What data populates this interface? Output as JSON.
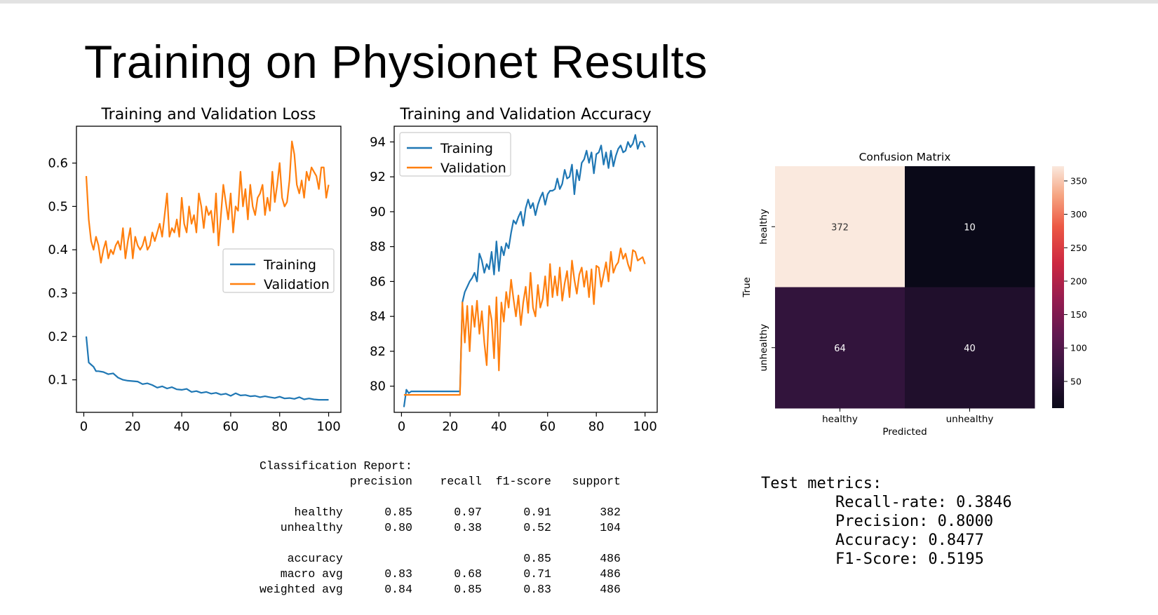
{
  "slide": {
    "title": "Training on Physionet Results"
  },
  "chart_data": [
    {
      "type": "line",
      "title": "Training and Validation Loss",
      "xlabel": "",
      "ylabel": "",
      "xlim": [
        -3,
        105
      ],
      "ylim": [
        0.025,
        0.685
      ],
      "xticks": [
        0,
        20,
        40,
        60,
        80,
        100
      ],
      "yticks": [
        0.1,
        0.2,
        0.3,
        0.4,
        0.5,
        0.6
      ],
      "grid": false,
      "legend": "center-right",
      "series": [
        {
          "name": "Training",
          "color": "#1f77b4",
          "x": [
            1,
            2,
            3,
            4,
            5,
            6,
            8,
            10,
            12,
            14,
            16,
            18,
            20,
            22,
            24,
            26,
            28,
            30,
            32,
            34,
            36,
            38,
            40,
            42,
            44,
            46,
            48,
            50,
            52,
            54,
            56,
            58,
            60,
            62,
            64,
            66,
            68,
            70,
            72,
            74,
            76,
            78,
            80,
            82,
            84,
            86,
            88,
            90,
            92,
            94,
            96,
            98,
            100
          ],
          "y": [
            0.2,
            0.14,
            0.135,
            0.13,
            0.12,
            0.12,
            0.118,
            0.113,
            0.115,
            0.105,
            0.1,
            0.098,
            0.097,
            0.096,
            0.09,
            0.092,
            0.088,
            0.082,
            0.085,
            0.08,
            0.083,
            0.078,
            0.077,
            0.079,
            0.072,
            0.074,
            0.07,
            0.072,
            0.068,
            0.07,
            0.066,
            0.068,
            0.063,
            0.069,
            0.064,
            0.065,
            0.062,
            0.063,
            0.06,
            0.062,
            0.06,
            0.058,
            0.061,
            0.057,
            0.058,
            0.056,
            0.06,
            0.055,
            0.057,
            0.055,
            0.054,
            0.054,
            0.054
          ]
        },
        {
          "name": "Validation",
          "color": "#ff7f0e",
          "x": [
            1,
            2,
            3,
            4,
            5,
            6,
            7,
            8,
            9,
            10,
            11,
            12,
            13,
            14,
            15,
            16,
            17,
            18,
            19,
            20,
            21,
            22,
            23,
            24,
            25,
            26,
            27,
            28,
            29,
            30,
            31,
            32,
            33,
            34,
            35,
            36,
            37,
            38,
            39,
            40,
            41,
            42,
            43,
            44,
            45,
            46,
            47,
            48,
            49,
            50,
            51,
            52,
            53,
            54,
            55,
            56,
            57,
            58,
            59,
            60,
            61,
            62,
            63,
            64,
            65,
            66,
            67,
            68,
            69,
            70,
            71,
            72,
            73,
            74,
            75,
            76,
            77,
            78,
            79,
            80,
            81,
            82,
            83,
            84,
            85,
            86,
            87,
            88,
            89,
            90,
            91,
            92,
            93,
            94,
            95,
            96,
            97,
            98,
            99,
            100
          ],
          "y": [
            0.57,
            0.47,
            0.42,
            0.4,
            0.43,
            0.41,
            0.37,
            0.4,
            0.42,
            0.38,
            0.4,
            0.39,
            0.41,
            0.42,
            0.4,
            0.45,
            0.38,
            0.42,
            0.45,
            0.38,
            0.43,
            0.41,
            0.4,
            0.41,
            0.43,
            0.4,
            0.41,
            0.44,
            0.42,
            0.44,
            0.46,
            0.43,
            0.48,
            0.53,
            0.43,
            0.45,
            0.44,
            0.47,
            0.43,
            0.52,
            0.46,
            0.44,
            0.5,
            0.46,
            0.48,
            0.44,
            0.53,
            0.5,
            0.45,
            0.5,
            0.48,
            0.49,
            0.44,
            0.53,
            0.41,
            0.48,
            0.55,
            0.51,
            0.47,
            0.53,
            0.44,
            0.5,
            0.49,
            0.58,
            0.5,
            0.54,
            0.47,
            0.55,
            0.5,
            0.48,
            0.52,
            0.53,
            0.55,
            0.48,
            0.52,
            0.49,
            0.58,
            0.51,
            0.55,
            0.6,
            0.52,
            0.5,
            0.51,
            0.56,
            0.65,
            0.62,
            0.55,
            0.53,
            0.56,
            0.52,
            0.58,
            0.56,
            0.59,
            0.58,
            0.57,
            0.54,
            0.59,
            0.59,
            0.52,
            0.55
          ]
        }
      ]
    },
    {
      "type": "line",
      "title": "Training and Validation Accuracy",
      "xlabel": "",
      "ylabel": "",
      "xlim": [
        -3,
        105
      ],
      "ylim": [
        78.5,
        94.9
      ],
      "xticks": [
        0,
        20,
        40,
        60,
        80,
        100
      ],
      "yticks": [
        80,
        82,
        84,
        86,
        88,
        90,
        92,
        94
      ],
      "grid": false,
      "legend": "top-left",
      "series": [
        {
          "name": "Training",
          "color": "#1f77b4",
          "x": [
            1,
            2,
            3,
            4,
            5,
            6,
            8,
            10,
            12,
            14,
            16,
            18,
            20,
            22,
            24,
            25,
            26,
            27,
            28,
            29,
            30,
            31,
            32,
            33,
            34,
            35,
            36,
            37,
            38,
            39,
            40,
            41,
            42,
            43,
            44,
            45,
            46,
            47,
            48,
            49,
            50,
            51,
            52,
            53,
            54,
            55,
            56,
            57,
            58,
            59,
            60,
            61,
            62,
            63,
            64,
            65,
            66,
            67,
            68,
            69,
            70,
            71,
            72,
            73,
            74,
            75,
            76,
            77,
            78,
            79,
            80,
            81,
            82,
            83,
            84,
            85,
            86,
            87,
            88,
            89,
            90,
            91,
            92,
            93,
            94,
            95,
            96,
            97,
            98,
            99,
            100
          ],
          "y": [
            78.8,
            79.8,
            79.6,
            79.7,
            79.7,
            79.7,
            79.7,
            79.7,
            79.7,
            79.7,
            79.7,
            79.7,
            79.7,
            79.7,
            79.7,
            84.8,
            85.4,
            85.7,
            86.0,
            86.2,
            86.5,
            86.0,
            87.6,
            87.2,
            86.5,
            87.0,
            86.7,
            87.7,
            86.4,
            88.3,
            86.6,
            88.0,
            87.5,
            88.2,
            87.9,
            88.8,
            89.5,
            89.3,
            89.7,
            90.0,
            89.2,
            90.2,
            90.7,
            90.2,
            90.5,
            89.8,
            90.4,
            90.8,
            91.1,
            90.4,
            91.0,
            91.2,
            91.2,
            91.3,
            91.9,
            91.3,
            91.6,
            92.4,
            91.9,
            92.0,
            92.7,
            91.0,
            92.4,
            91.8,
            92.8,
            93.0,
            93.5,
            92.8,
            93.4,
            92.2,
            93.3,
            93.4,
            93.8,
            92.7,
            93.4,
            92.5,
            93.5,
            92.6,
            93.2,
            93.6,
            93.8,
            93.4,
            93.5,
            94.0,
            93.7,
            93.9,
            94.4,
            93.6,
            94.0,
            94.0,
            93.7
          ]
        },
        {
          "name": "Validation",
          "color": "#ff7f0e",
          "x": [
            1,
            2,
            3,
            4,
            5,
            6,
            8,
            10,
            12,
            14,
            16,
            18,
            20,
            22,
            24,
            25,
            26,
            27,
            28,
            29,
            30,
            31,
            32,
            33,
            34,
            35,
            36,
            37,
            38,
            39,
            40,
            41,
            42,
            43,
            44,
            45,
            46,
            47,
            48,
            49,
            50,
            51,
            52,
            53,
            54,
            55,
            56,
            57,
            58,
            59,
            60,
            61,
            62,
            63,
            64,
            65,
            66,
            67,
            68,
            69,
            70,
            71,
            72,
            73,
            74,
            75,
            76,
            77,
            78,
            79,
            80,
            81,
            82,
            83,
            84,
            85,
            86,
            87,
            88,
            89,
            90,
            91,
            92,
            93,
            94,
            95,
            96,
            97,
            98,
            99,
            100
          ],
          "y": [
            79.5,
            79.5,
            79.5,
            79.5,
            79.5,
            79.5,
            79.5,
            79.5,
            79.5,
            79.5,
            79.5,
            79.5,
            79.5,
            79.5,
            79.5,
            84.8,
            82.5,
            84.6,
            82.0,
            84.6,
            83.4,
            84.9,
            83.0,
            84.3,
            82.5,
            81.2,
            84.6,
            83.8,
            81.6,
            85.1,
            80.9,
            84.8,
            83.7,
            85.4,
            84.5,
            86.1,
            85.0,
            84.0,
            85.2,
            83.5,
            84.8,
            85.7,
            84.2,
            86.5,
            84.5,
            84.0,
            85.8,
            84.5,
            85.0,
            86.3,
            84.6,
            87.0,
            85.1,
            86.3,
            85.2,
            86.8,
            84.9,
            85.9,
            86.6,
            85.1,
            87.2,
            86.1,
            85.3,
            86.4,
            86.8,
            85.7,
            86.6,
            85.1,
            86.7,
            84.7,
            86.9,
            86.8,
            85.7,
            86.4,
            87.1,
            86.0,
            87.7,
            86.5,
            86.9,
            87.1,
            87.9,
            87.3,
            87.6,
            87.0,
            86.6,
            87.8,
            87.7,
            87.2,
            87.3,
            87.4,
            87.0
          ]
        }
      ]
    },
    {
      "type": "heatmap",
      "title": "Confusion Matrix",
      "xlabel": "Predicted",
      "ylabel": "True",
      "x_categories": [
        "healthy",
        "unhealthy"
      ],
      "y_categories": [
        "healthy",
        "unhealthy"
      ],
      "values": [
        [
          372,
          10
        ],
        [
          64,
          40
        ]
      ],
      "colorbar": {
        "ticks": [
          50,
          100,
          150,
          200,
          250,
          300,
          350
        ],
        "min": 10,
        "max": 372
      }
    }
  ],
  "report": {
    "title": "Classification Report:",
    "columns": [
      "precision",
      "recall",
      "f1-score",
      "support"
    ],
    "rows": [
      [
        "healthy",
        "0.85",
        "0.97",
        "0.91",
        "382"
      ],
      [
        "unhealthy",
        "0.80",
        "0.38",
        "0.52",
        "104"
      ]
    ],
    "summary": [
      [
        "accuracy",
        "",
        "",
        "0.85",
        "486"
      ],
      [
        "macro avg",
        "0.83",
        "0.68",
        "0.71",
        "486"
      ],
      [
        "weighted avg",
        "0.84",
        "0.85",
        "0.83",
        "486"
      ]
    ]
  },
  "metrics": {
    "title": "Test metrics:",
    "items": [
      "Recall-rate: 0.3846",
      "Precision: 0.8000",
      "Accuracy: 0.8477",
      "F1-Score: 0.5195"
    ]
  }
}
